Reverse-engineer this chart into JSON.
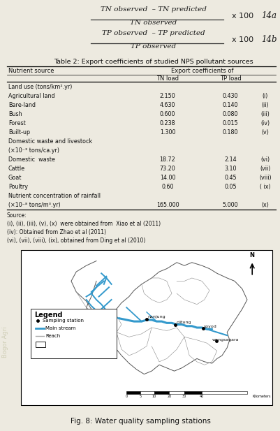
{
  "fig_caption": "Fig. 8: Water quality sampling stations",
  "formula1_numerator": "TN observed  – TN predicted",
  "formula1_denominator": "TN observed",
  "formula1_label": "14a",
  "formula2_numerator": "TP observed  – TP predicted",
  "formula2_denominator": "TP observed",
  "formula2_label": "14b",
  "table_title": "Table 2: Export coefficients of studied NPS pollutant sources",
  "table_col1": "Nutrient source",
  "table_col2": "Export coefficients of",
  "table_col2a": "TN load",
  "table_col2b": "TP load",
  "table_rows": [
    {
      "name": "Land use (tons/km².yr)",
      "tn": "",
      "tp": "",
      "ref": ""
    },
    {
      "name": "Agricultural land",
      "tn": "2.150",
      "tp": "0.430",
      "ref": "(i)"
    },
    {
      "name": "Bare-land",
      "tn": "4.630",
      "tp": "0.140",
      "ref": "(ii)"
    },
    {
      "name": "Bush",
      "tn": "0.600",
      "tp": "0.080",
      "ref": "(iii)"
    },
    {
      "name": "Forest",
      "tn": "0.238",
      "tp": "0.015",
      "ref": "(iv)"
    },
    {
      "name": "Built-up",
      "tn": "1.300",
      "tp": "0.180",
      "ref": "(v)"
    },
    {
      "name": "Domestic waste and livestock",
      "tn": "",
      "tp": "",
      "ref": ""
    },
    {
      "name": "(×10⁻² tons/ca.yr)",
      "tn": "",
      "tp": "",
      "ref": ""
    },
    {
      "name": "Domestic  waste",
      "tn": "18.72",
      "tp": "2.14",
      "ref": "(vi)"
    },
    {
      "name": "Cattle",
      "tn": "73.20",
      "tp": "3.10",
      "ref": "(vii)"
    },
    {
      "name": "Goat",
      "tn": "14.00",
      "tp": "0.45",
      "ref": "(viii)"
    },
    {
      "name": "Poultry",
      "tn": "0.60",
      "tp": "0.05",
      "ref": "( ix)"
    },
    {
      "name": "Nutrient concentration of rainfall",
      "tn": "",
      "tp": "",
      "ref": ""
    },
    {
      "name": "(×10⁻⁸ tons/m³.yr)",
      "tn": "165.000",
      "tp": "5.000",
      "ref": "(x)"
    }
  ],
  "source_lines": [
    "Source:",
    "(i), (ii), (iii), (v), (x)  were obtained from  Xiao et al (2011)",
    "(iv): Obtained from Zhao et al (2011)",
    "(vi), (vii), (viii), (ix), obtained from Ding et al (2010)"
  ],
  "legend_title": "Legend",
  "page_bg": "#edeae0"
}
